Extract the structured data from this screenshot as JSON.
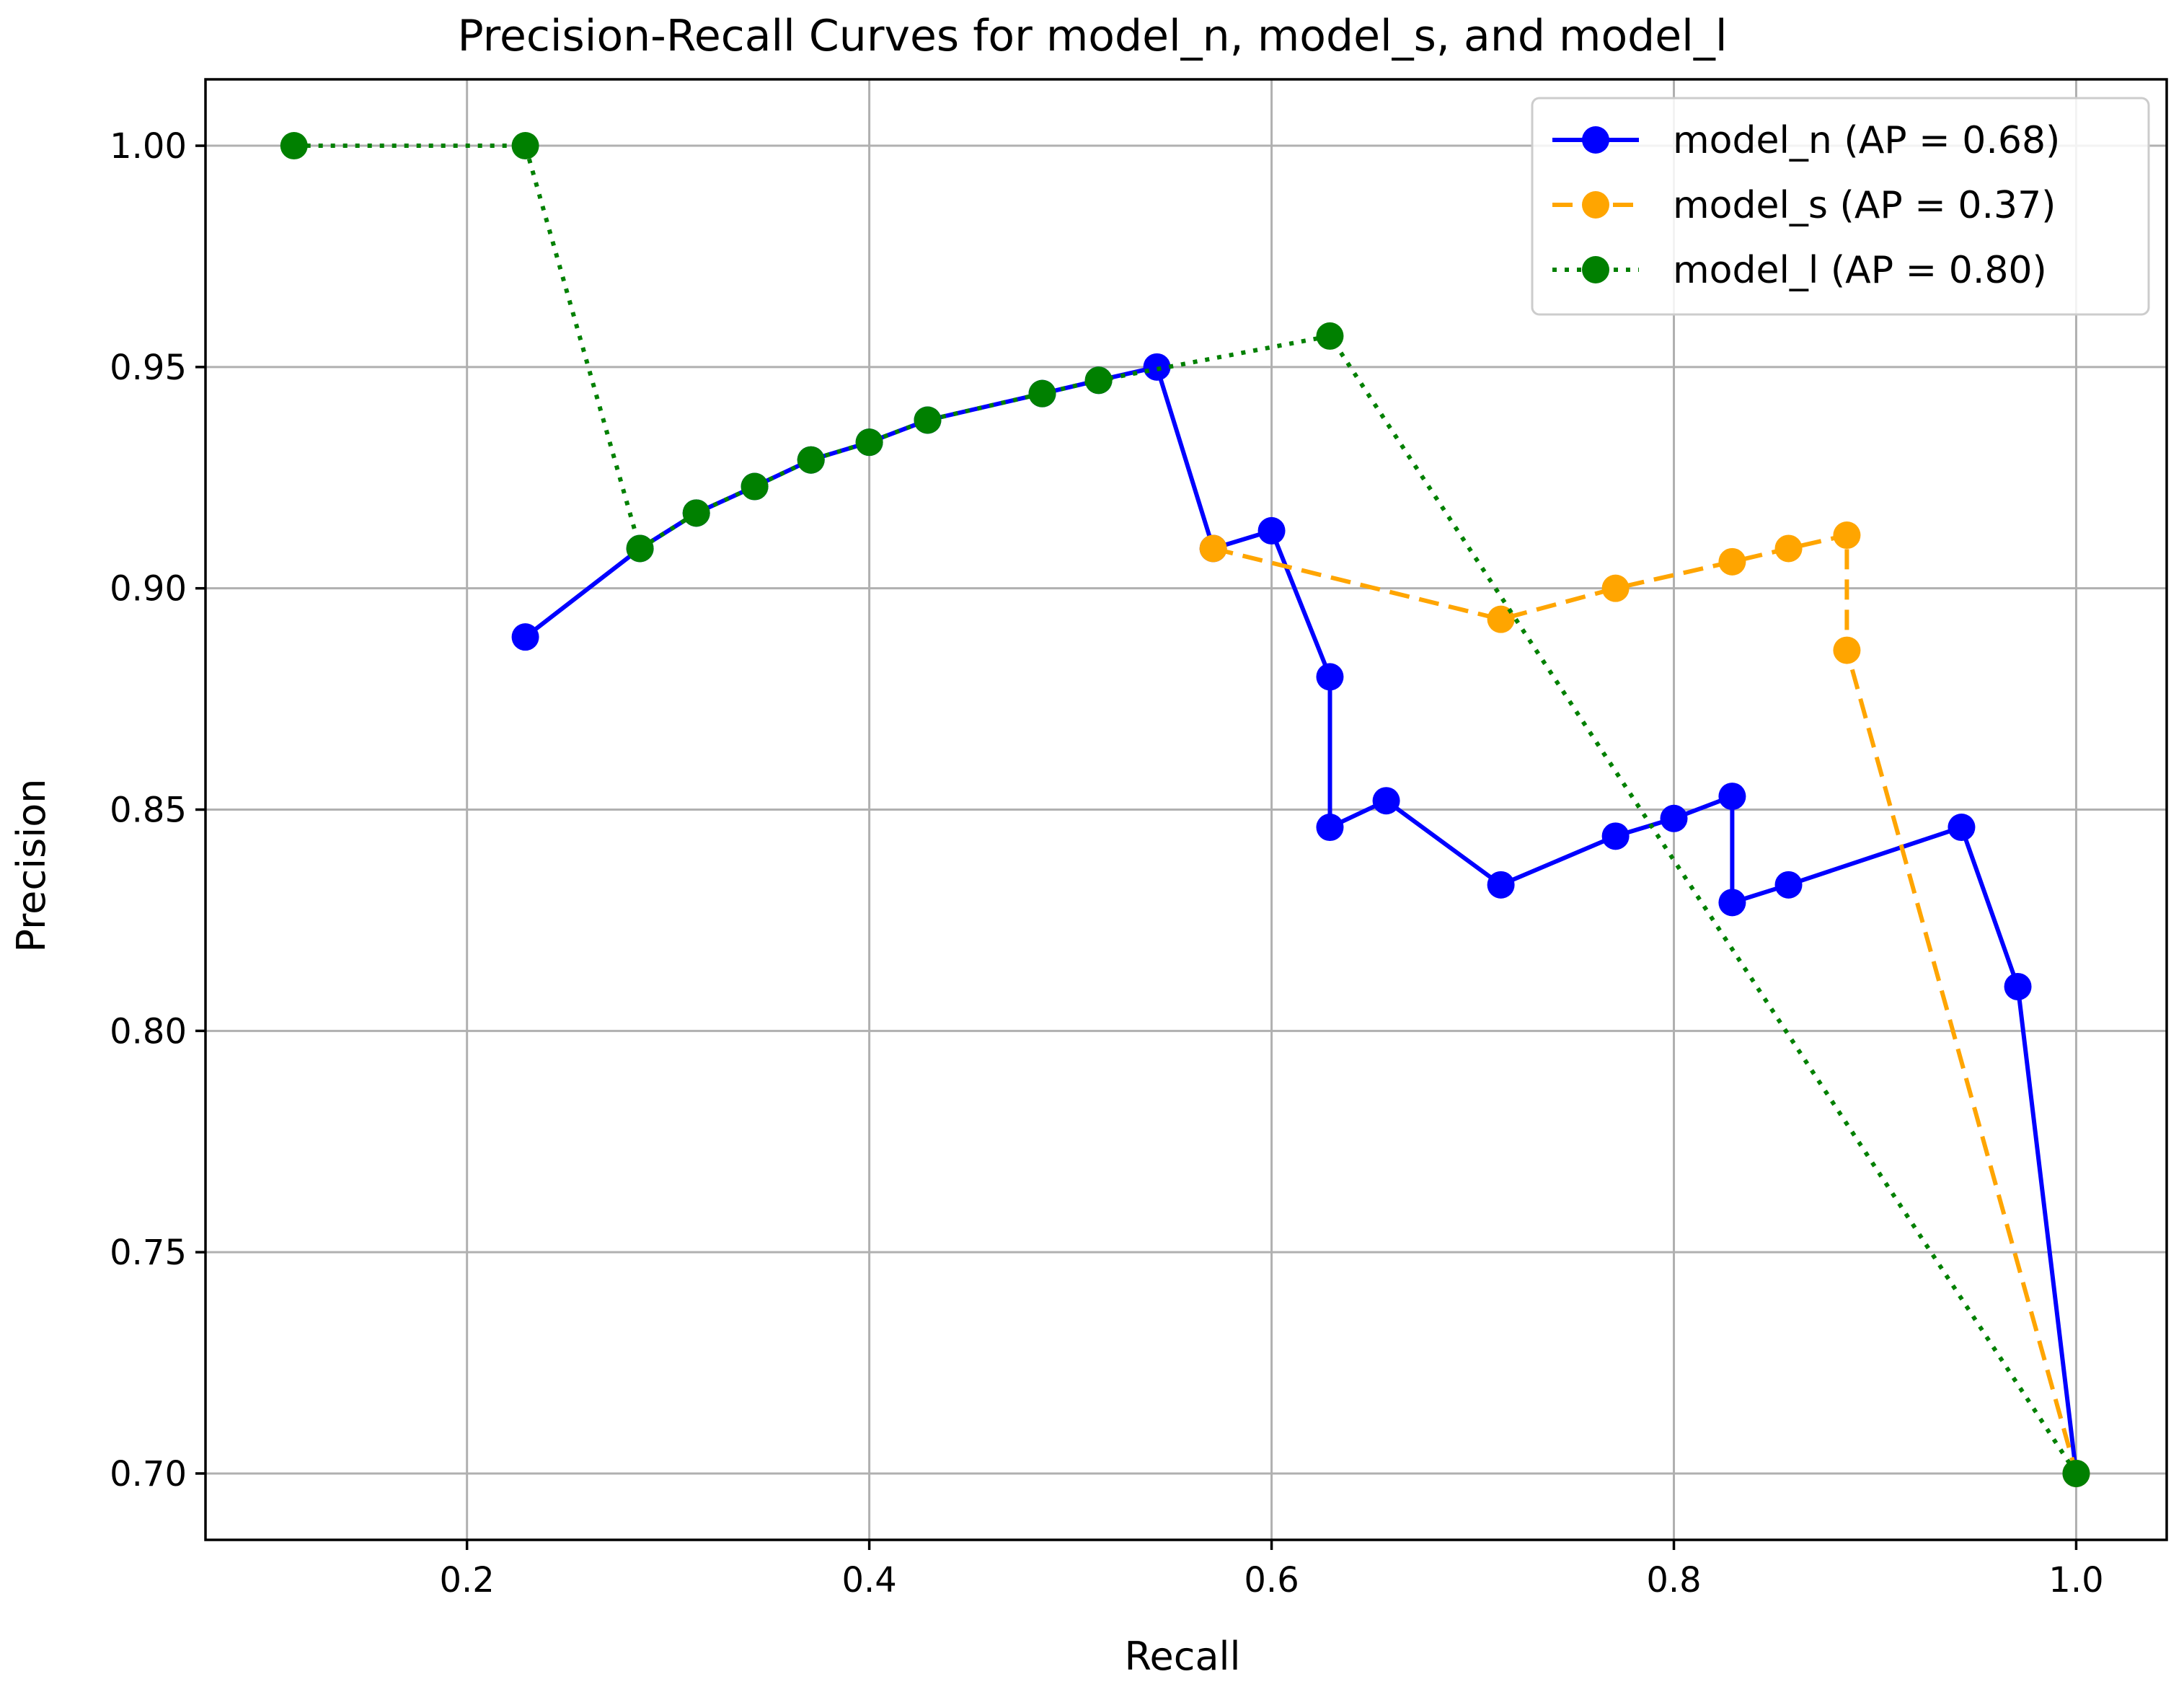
{
  "chart_data": {
    "type": "line",
    "title": "Precision-Recall Curves for model_n, model_s, and model_l",
    "xlabel": "Recall",
    "ylabel": "Precision",
    "xlim": [
      0.07,
      1.045
    ],
    "ylim": [
      0.685,
      1.015
    ],
    "xticks": [
      0.2,
      0.4,
      0.6,
      0.8,
      1.0
    ],
    "xtick_labels": [
      "0.2",
      "0.4",
      "0.6",
      "0.8",
      "1.0"
    ],
    "yticks": [
      0.7,
      0.75,
      0.8,
      0.85,
      0.9,
      0.95,
      1.0
    ],
    "ytick_labels": [
      "0.70",
      "0.75",
      "0.80",
      "0.85",
      "0.90",
      "0.95",
      "1.00"
    ],
    "grid": true,
    "legend_position": "top-right",
    "series": [
      {
        "name": "model_n (AP = 0.68)",
        "color": "#0000ff",
        "linestyle": "solid",
        "marker": "circle",
        "x": [
          0.229,
          0.286,
          0.314,
          0.343,
          0.371,
          0.4,
          0.429,
          0.486,
          0.514,
          0.543,
          0.571,
          0.6,
          0.629,
          0.629,
          0.657,
          0.714,
          0.771,
          0.8,
          0.829,
          0.829,
          0.857,
          0.943,
          0.971,
          1.0
        ],
        "y": [
          0.889,
          0.909,
          0.917,
          0.923,
          0.929,
          0.933,
          0.938,
          0.944,
          0.947,
          0.95,
          0.909,
          0.913,
          0.88,
          0.846,
          0.852,
          0.833,
          0.844,
          0.848,
          0.853,
          0.829,
          0.833,
          0.846,
          0.81,
          0.7
        ]
      },
      {
        "name": "model_s (AP = 0.37)",
        "color": "#ffa500",
        "linestyle": "dashed",
        "marker": "circle",
        "x": [
          0.571,
          0.714,
          0.771,
          0.829,
          0.857,
          0.886,
          0.886,
          1.0
        ],
        "y": [
          0.909,
          0.893,
          0.9,
          0.906,
          0.909,
          0.912,
          0.886,
          0.7
        ]
      },
      {
        "name": "model_l (AP = 0.80)",
        "color": "#008000",
        "linestyle": "dotted",
        "marker": "circle",
        "x": [
          0.114,
          0.229,
          0.286,
          0.314,
          0.343,
          0.371,
          0.4,
          0.429,
          0.486,
          0.514,
          0.629,
          1.0
        ],
        "y": [
          1.0,
          1.0,
          0.909,
          0.917,
          0.923,
          0.929,
          0.933,
          0.938,
          0.944,
          0.947,
          0.957,
          0.7
        ]
      }
    ]
  }
}
